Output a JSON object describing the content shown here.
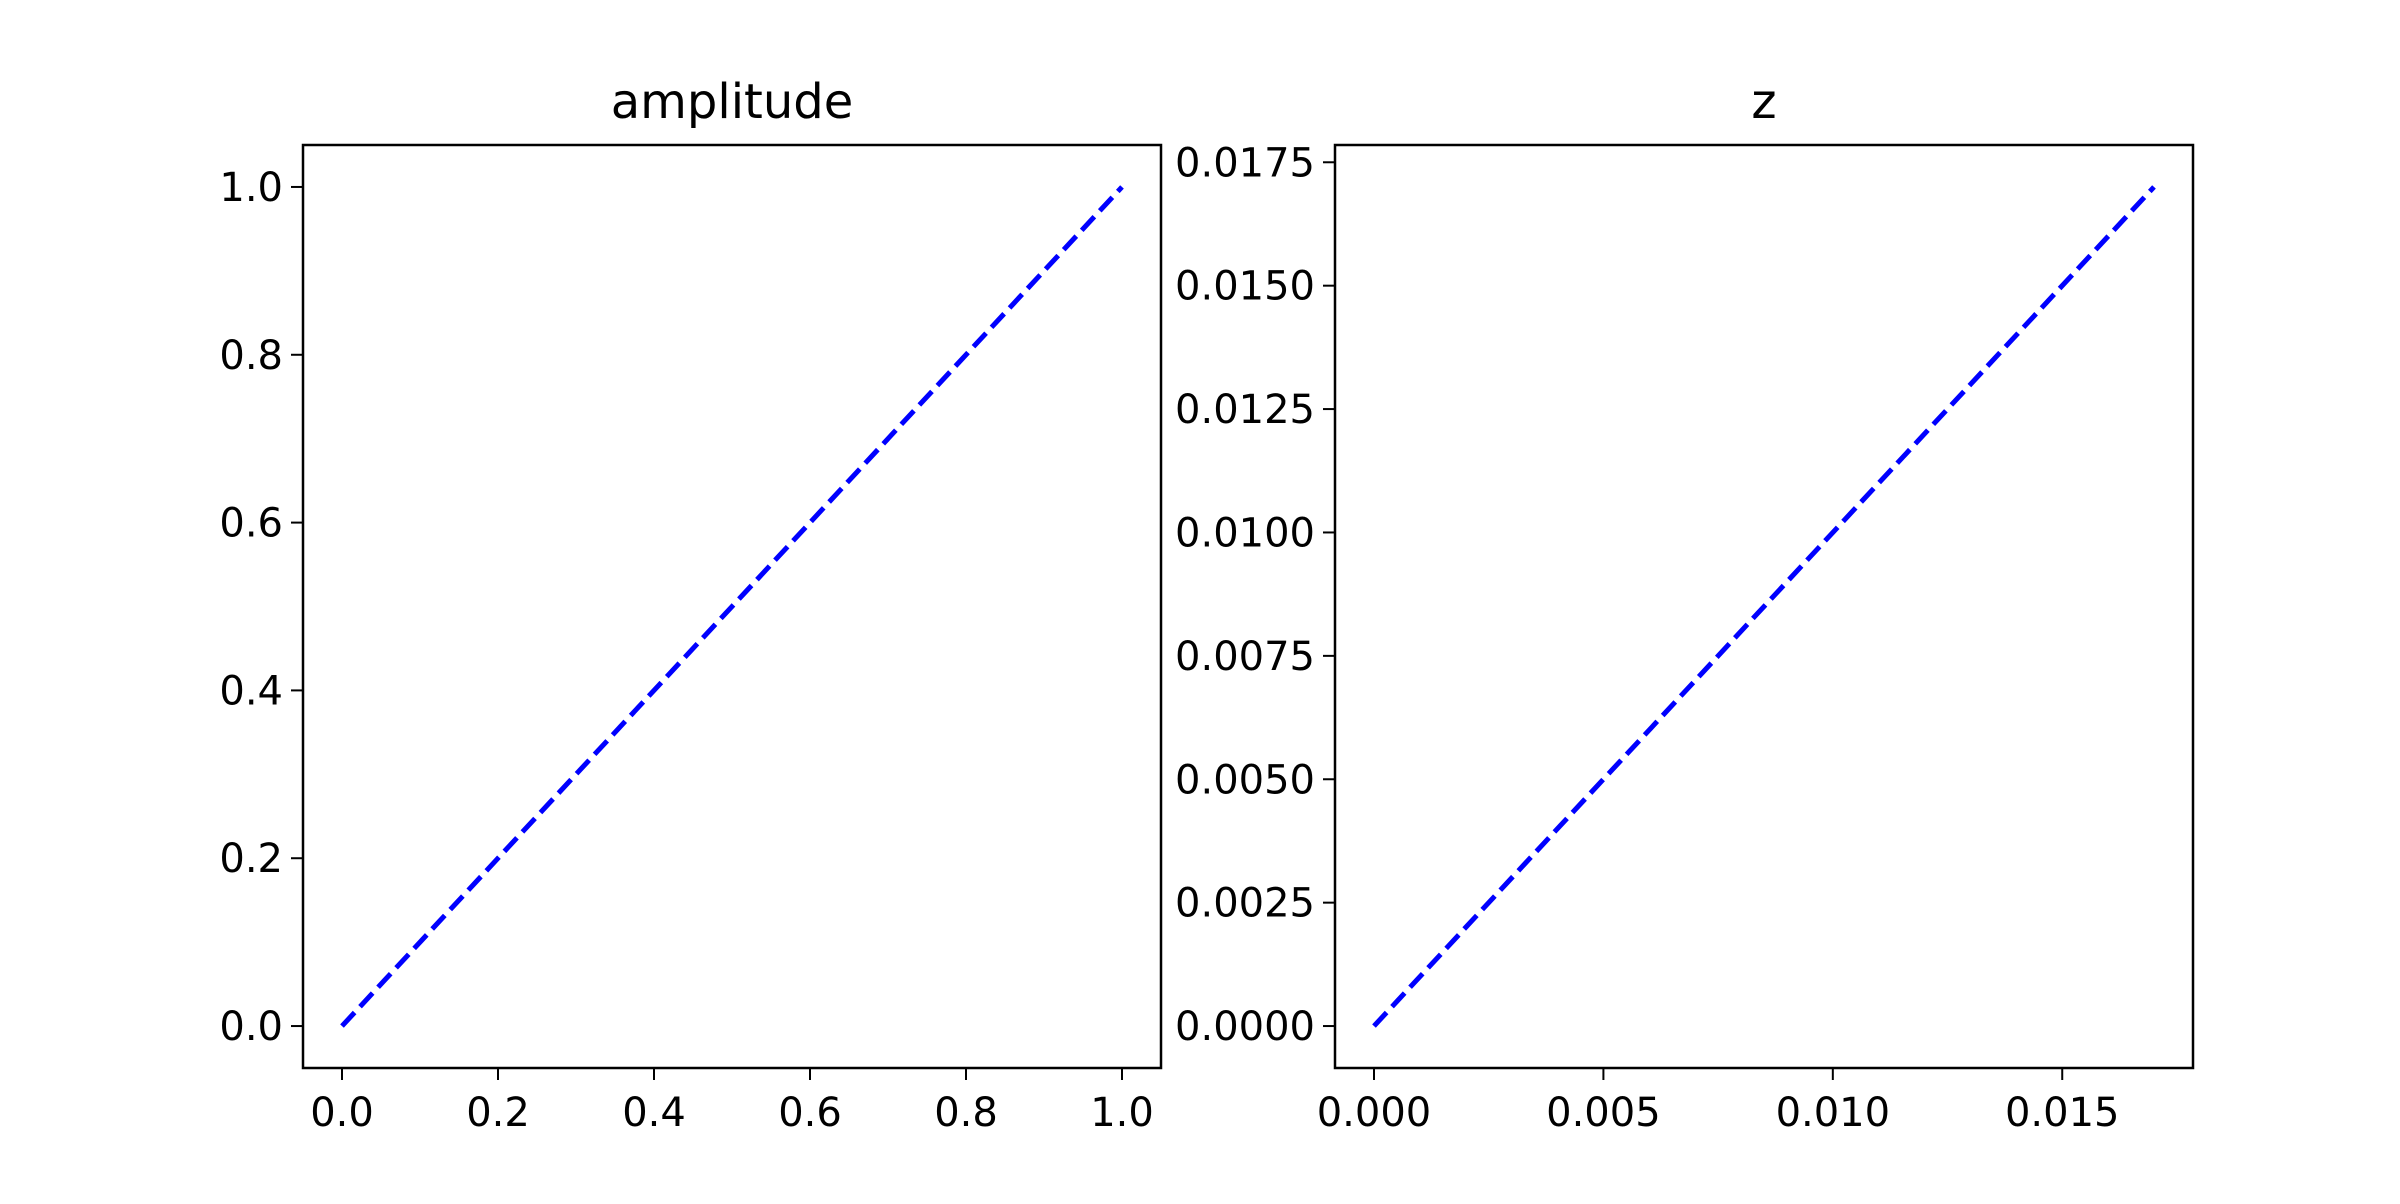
{
  "chart_data": [
    {
      "type": "line",
      "title": "amplitude",
      "xlabel": "",
      "ylabel": "",
      "xlim": [
        -0.05,
        1.05
      ],
      "ylim": [
        -0.05,
        1.05
      ],
      "x_ticks": [
        0.0,
        0.2,
        0.4,
        0.6,
        0.8,
        1.0
      ],
      "x_tick_labels": [
        "0.0",
        "0.2",
        "0.4",
        "0.6",
        "0.8",
        "1.0"
      ],
      "y_ticks": [
        0.0,
        0.2,
        0.4,
        0.6,
        0.8,
        1.0
      ],
      "y_tick_labels": [
        "0.0",
        "0.2",
        "0.4",
        "0.6",
        "0.8",
        "1.0"
      ],
      "grid": false,
      "series": [
        {
          "line_style": "dashed",
          "color": "#0000ff",
          "x": [
            0.0,
            1.0
          ],
          "y": [
            0.0,
            1.0
          ]
        }
      ]
    },
    {
      "type": "line",
      "title": "z",
      "xlabel": "",
      "ylabel": "",
      "xlim": [
        -0.00085,
        0.01785
      ],
      "ylim": [
        -0.00085,
        0.01785
      ],
      "x_ticks": [
        0.0,
        0.005,
        0.01,
        0.015
      ],
      "x_tick_labels": [
        "0.000",
        "0.005",
        "0.010",
        "0.015"
      ],
      "y_ticks": [
        0.0,
        0.0025,
        0.005,
        0.0075,
        0.01,
        0.0125,
        0.015,
        0.0175
      ],
      "y_tick_labels": [
        "0.0000",
        "0.0025",
        "0.0050",
        "0.0075",
        "0.0100",
        "0.0125",
        "0.0150",
        "0.0175"
      ],
      "grid": false,
      "series": [
        {
          "line_style": "dashed",
          "color": "#0000ff",
          "x": [
            0.0,
            0.017
          ],
          "y": [
            0.0,
            0.017
          ]
        }
      ]
    }
  ]
}
